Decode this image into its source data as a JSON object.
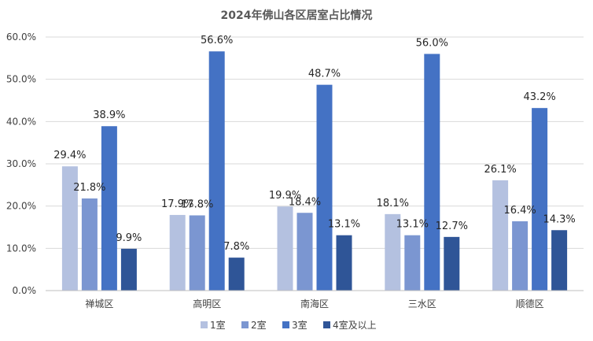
{
  "chart_data": {
    "type": "bar",
    "title": "2024年佛山各区居室占比情况",
    "categories": [
      "禅城区",
      "高明区",
      "南海区",
      "三水区",
      "顺德区"
    ],
    "series": [
      {
        "name": "1室",
        "color": "#b4c1e0",
        "values": [
          29.4,
          17.9,
          19.9,
          18.1,
          26.1
        ],
        "labels": [
          "29.4%",
          "17.9%",
          "19.9%",
          "18.1%",
          "26.1%"
        ]
      },
      {
        "name": "2室",
        "color": "#7b96d1",
        "values": [
          21.8,
          17.8,
          18.4,
          13.1,
          16.4
        ],
        "labels": [
          "21.8%",
          "17.8%",
          "18.4%",
          "13.1%",
          "16.4%"
        ]
      },
      {
        "name": "3室",
        "color": "#4472c4",
        "values": [
          38.9,
          56.6,
          48.7,
          56.0,
          43.2
        ],
        "labels": [
          "38.9%",
          "56.6%",
          "48.7%",
          "56.0%",
          "43.2%"
        ]
      },
      {
        "name": "4室及以上",
        "color": "#2f5597",
        "values": [
          9.9,
          7.8,
          13.1,
          12.7,
          14.3
        ],
        "labels": [
          "9.9%",
          "7.8%",
          "13.1%",
          "12.7%",
          "14.3%"
        ]
      }
    ],
    "y_ticks": [
      "0.0%",
      "10.0%",
      "20.0%",
      "30.0%",
      "40.0%",
      "50.0%",
      "60.0%"
    ],
    "ylim": [
      0,
      60
    ],
    "xlabel": "",
    "ylabel": "",
    "grid": true,
    "legend": "bottom"
  }
}
